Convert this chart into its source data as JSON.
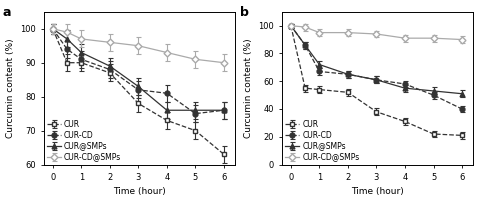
{
  "panel_a": {
    "title": "a",
    "xlabel": "Time (hour)",
    "ylabel": "Curcumin content (%)",
    "ylim": [
      60,
      105
    ],
    "yticks": [
      60,
      70,
      80,
      90,
      100
    ],
    "xticks": [
      0,
      1,
      2,
      3,
      4,
      5,
      6
    ],
    "series": {
      "CUR": {
        "x": [
          0,
          0.5,
          1,
          2,
          3,
          4,
          5,
          6
        ],
        "y": [
          100,
          90,
          90,
          87,
          78,
          73,
          70,
          63
        ],
        "yerr": [
          1.5,
          2.5,
          2.5,
          2.5,
          2.5,
          2.5,
          2.5,
          2.5
        ],
        "marker": "s",
        "linestyle": "--",
        "color": "#333333",
        "fillstyle": "none"
      },
      "CUR-CD": {
        "x": [
          0,
          0.5,
          1,
          2,
          3,
          4,
          5,
          6
        ],
        "y": [
          100,
          94,
          91,
          88,
          82,
          81,
          75,
          76
        ],
        "yerr": [
          1.5,
          2.5,
          2.5,
          2.5,
          2.5,
          2.5,
          2.5,
          2.5
        ],
        "marker": "o",
        "linestyle": "--",
        "color": "#333333",
        "fillstyle": "full"
      },
      "CUR@SMPs": {
        "x": [
          0,
          0.5,
          1,
          2,
          3,
          4,
          5,
          6
        ],
        "y": [
          100,
          97,
          93,
          89,
          83,
          76,
          76,
          76
        ],
        "yerr": [
          1.5,
          2.5,
          2.5,
          2.5,
          2.5,
          2.5,
          2.5,
          2.5
        ],
        "marker": "^",
        "linestyle": "-",
        "color": "#333333",
        "fillstyle": "full"
      },
      "CUR-CD@SMPs": {
        "x": [
          0,
          0.5,
          1,
          2,
          3,
          4,
          5,
          6
        ],
        "y": [
          100,
          99,
          97,
          96,
          95,
          93,
          91,
          90
        ],
        "yerr": [
          1.5,
          2.5,
          2.5,
          2.5,
          2.5,
          2.5,
          2.5,
          2.5
        ],
        "marker": "D",
        "linestyle": "-",
        "color": "#aaaaaa",
        "fillstyle": "none"
      }
    }
  },
  "panel_b": {
    "title": "b",
    "xlabel": "Time (hour)",
    "ylabel": "Curcumin content (%)",
    "ylim": [
      0,
      110
    ],
    "yticks": [
      0,
      20,
      40,
      60,
      80,
      100
    ],
    "xticks": [
      0,
      1,
      2,
      3,
      4,
      5,
      6
    ],
    "series": {
      "CUR": {
        "x": [
          0,
          0.5,
          1,
          2,
          3,
          4,
          5,
          6
        ],
        "y": [
          100,
          55,
          54,
          52,
          38,
          31,
          22,
          21
        ],
        "yerr": [
          1.5,
          2.5,
          2.5,
          2.5,
          2.5,
          2.5,
          2.5,
          2.5
        ],
        "marker": "s",
        "linestyle": "--",
        "color": "#333333",
        "fillstyle": "none"
      },
      "CUR-CD": {
        "x": [
          0,
          0.5,
          1,
          2,
          3,
          4,
          5,
          6
        ],
        "y": [
          100,
          86,
          67,
          65,
          61,
          58,
          50,
          40
        ],
        "yerr": [
          1.5,
          2.5,
          2.5,
          2.5,
          2.5,
          2.5,
          2.5,
          2.5
        ],
        "marker": "o",
        "linestyle": "--",
        "color": "#333333",
        "fillstyle": "full"
      },
      "CUR@SMPs": {
        "x": [
          0,
          0.5,
          1,
          2,
          3,
          4,
          5,
          6
        ],
        "y": [
          100,
          86,
          72,
          65,
          61,
          55,
          53,
          51
        ],
        "yerr": [
          1.5,
          2.5,
          2.5,
          2.5,
          2.5,
          2.5,
          2.5,
          2.5
        ],
        "marker": "^",
        "linestyle": "-",
        "color": "#333333",
        "fillstyle": "full"
      },
      "CUR-CD@SMPs": {
        "x": [
          0,
          0.5,
          1,
          2,
          3,
          4,
          5,
          6
        ],
        "y": [
          100,
          99,
          95,
          95,
          94,
          91,
          91,
          90
        ],
        "yerr": [
          1.5,
          2.5,
          2.5,
          2.5,
          2.5,
          2.5,
          2.5,
          2.5
        ],
        "marker": "D",
        "linestyle": "-",
        "color": "#aaaaaa",
        "fillstyle": "none"
      }
    }
  },
  "legend_order": [
    "CUR",
    "CUR-CD",
    "CUR@SMPs",
    "CUR-CD@SMPs"
  ],
  "figure_bg": "#ffffff"
}
